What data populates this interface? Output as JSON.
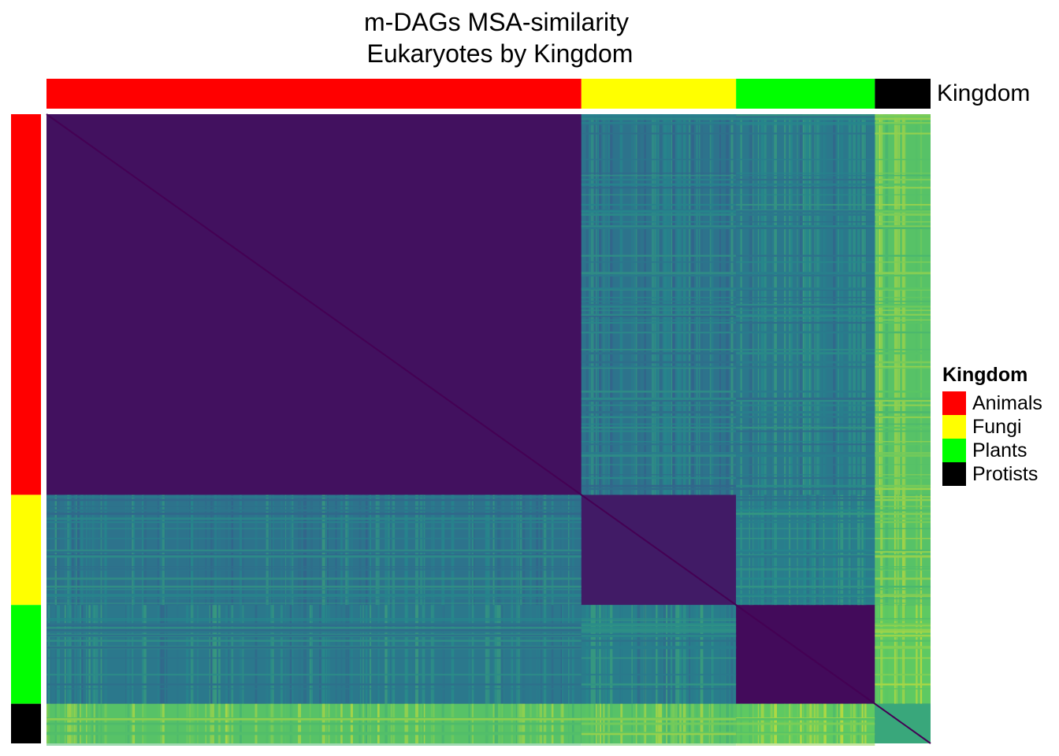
{
  "chart_data": {
    "type": "heatmap",
    "title": "m-DAGs MSA-similarity\n Eukaryotes by Kingdom",
    "title_lines": [
      "m-DAGs MSA-similarity",
      " Eukaryotes by Kingdom"
    ],
    "annotation_label": "Kingdom",
    "legend": {
      "title": "Kingdom",
      "placement": "right",
      "entries": [
        {
          "name": "Animals",
          "color": "#ff0000"
        },
        {
          "name": "Fungi",
          "color": "#ffff00"
        },
        {
          "name": "Plants",
          "color": "#00ff00"
        },
        {
          "name": "Protists",
          "color": "#000000"
        }
      ]
    },
    "kingdom_groups": [
      {
        "name": "Animals",
        "share": 0.605
      },
      {
        "name": "Fungi",
        "share": 0.175
      },
      {
        "name": "Plants",
        "share": 0.157
      },
      {
        "name": "Protists",
        "share": 0.063
      }
    ],
    "colormap": "viridis",
    "colormap_stops": [
      "#440154",
      "#3b528b",
      "#21918c",
      "#5ec962",
      "#fde725"
    ],
    "blocks": [
      {
        "row": "Animals",
        "col": "Animals",
        "level": 0.05
      },
      {
        "row": "Animals",
        "col": "Fungi",
        "level": 0.38
      },
      {
        "row": "Animals",
        "col": "Plants",
        "level": 0.4
      },
      {
        "row": "Animals",
        "col": "Protists",
        "level": 0.72
      },
      {
        "row": "Fungi",
        "col": "Fungi",
        "level": 0.08
      },
      {
        "row": "Fungi",
        "col": "Plants",
        "level": 0.42
      },
      {
        "row": "Fungi",
        "col": "Protists",
        "level": 0.72
      },
      {
        "row": "Plants",
        "col": "Plants",
        "level": 0.03
      },
      {
        "row": "Plants",
        "col": "Protists",
        "level": 0.75
      },
      {
        "row": "Protists",
        "col": "Protists",
        "level": 0.6
      }
    ]
  }
}
